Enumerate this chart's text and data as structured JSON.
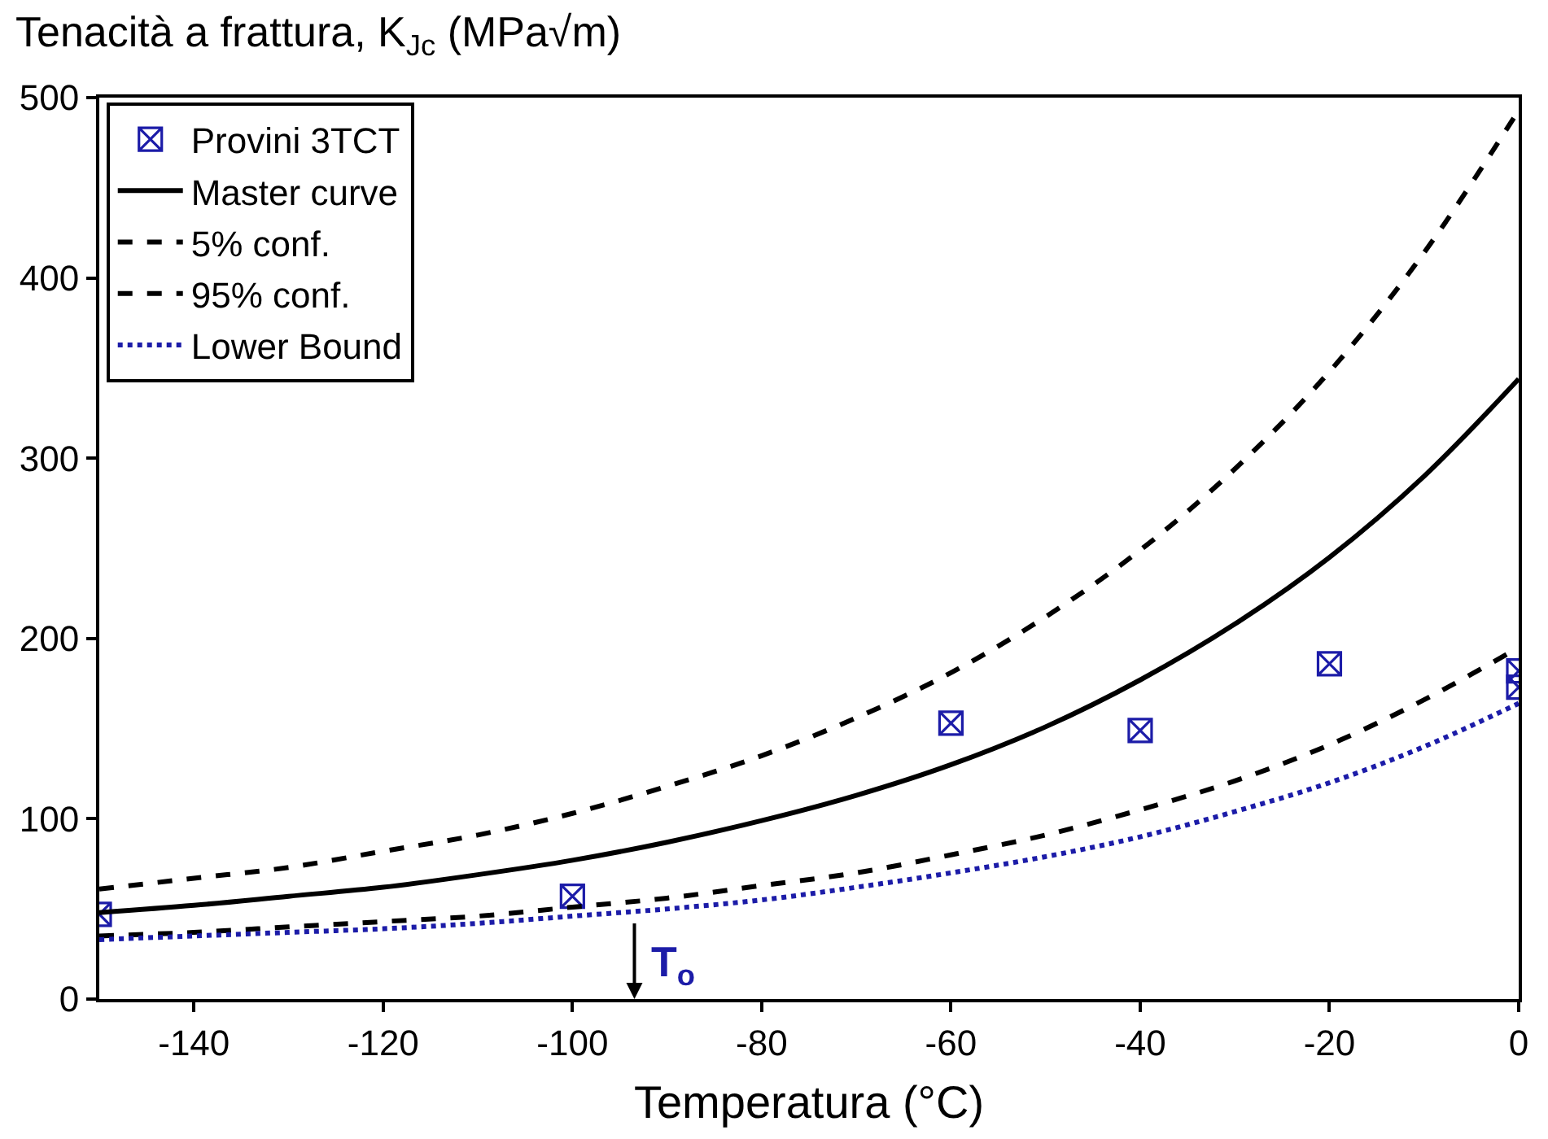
{
  "chart_data": {
    "type": "line",
    "title": "Tenacità a frattura, K$_{Jc}$ (MPa√m)",
    "xlabel": "Temperatura (°C)",
    "xlim": [
      -150,
      0
    ],
    "xticks": [
      -140,
      -120,
      -100,
      -80,
      -60,
      -40,
      -20,
      0
    ],
    "ylim": [
      0,
      500
    ],
    "yticks": [
      0,
      100,
      200,
      300,
      400,
      500
    ],
    "legend": "top left",
    "series": [
      {
        "name": "Provini 3TCT",
        "type": "scatter",
        "marker": "cross",
        "color": "#1c1ca8",
        "x": [
          -150,
          -100,
          -60,
          -40,
          -20,
          0,
          0
        ],
        "values": [
          47,
          57,
          153,
          149,
          186,
          182,
          173
        ]
      },
      {
        "name": "Master curve",
        "line_style": "solid",
        "marker": "none",
        "color": "#000000",
        "x": [
          -150,
          -140,
          -130,
          -120,
          -110,
          -100,
          -90,
          -80,
          -70,
          -60,
          -50,
          -40,
          -30,
          -20,
          -10,
          0
        ],
        "values": [
          48,
          52,
          57,
          62,
          69,
          77,
          87,
          99,
          113,
          130,
          151,
          177,
          208,
          245,
          290,
          344
        ]
      },
      {
        "name": "5% conf.",
        "line_style": "dashed",
        "marker": "none",
        "color": "#000000",
        "x": [
          -150,
          -140,
          -130,
          -120,
          -110,
          -100,
          -90,
          -80,
          -70,
          -60,
          -50,
          -40,
          -30,
          -20,
          -10,
          0
        ],
        "values": [
          35,
          37,
          40,
          43,
          46,
          51,
          56,
          63,
          70,
          80,
          91,
          105,
          121,
          141,
          166,
          195
        ]
      },
      {
        "name": "95% conf.",
        "line_style": "dashed",
        "marker": "none",
        "color": "#000000",
        "x": [
          -150,
          -140,
          -130,
          -120,
          -110,
          -100,
          -90,
          -80,
          -70,
          -60,
          -50,
          -40,
          -30,
          -20,
          -10,
          0
        ],
        "values": [
          61,
          67,
          73,
          82,
          91,
          103,
          118,
          135,
          156,
          181,
          212,
          249,
          294,
          348,
          414,
          493
        ]
      },
      {
        "name": "Lower Bound",
        "line_style": "dotted",
        "marker": "none",
        "color": "#1c1ca8",
        "x": [
          -150,
          -140,
          -130,
          -120,
          -110,
          -100,
          -90,
          -80,
          -70,
          -60,
          -50,
          -40,
          -30,
          -20,
          -10,
          0
        ],
        "values": [
          33,
          35,
          37,
          39,
          42,
          46,
          50,
          55,
          62,
          70,
          79,
          90,
          104,
          120,
          140,
          164
        ]
      }
    ],
    "annotations": [
      "T$_{o}$"
    ]
  }
}
